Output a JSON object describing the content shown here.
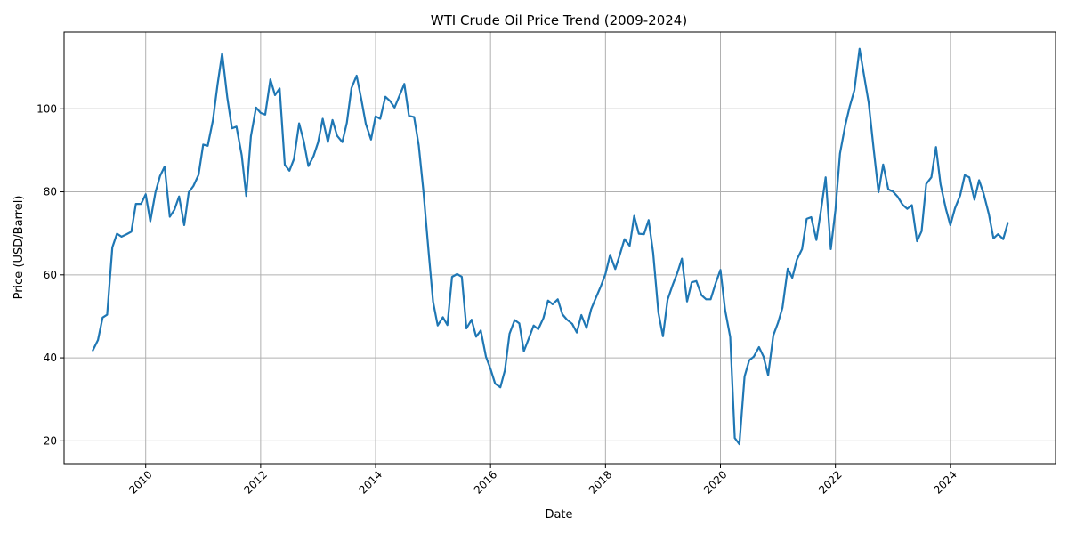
{
  "chart_data": {
    "type": "line",
    "title": "WTI Crude Oil Price Trend (2009-2024)",
    "xlabel": "Date",
    "ylabel": "Price (USD/Barrel)",
    "grid": true,
    "xlim": [
      2008.58,
      2025.83
    ],
    "ylim": [
      14.5,
      118.5
    ],
    "x_ticks": [
      2010,
      2012,
      2014,
      2016,
      2018,
      2020,
      2022,
      2024
    ],
    "x_tick_labels": [
      "2010",
      "2012",
      "2014",
      "2016",
      "2018",
      "2020",
      "2022",
      "2024"
    ],
    "y_ticks": [
      20,
      40,
      60,
      80,
      100
    ],
    "y_tick_labels": [
      "20",
      "40",
      "60",
      "80",
      "100"
    ],
    "series": [
      {
        "color": "#1f77b4",
        "x": [
          2009.08,
          2009.17,
          2009.25,
          2009.33,
          2009.42,
          2009.5,
          2009.58,
          2009.67,
          2009.75,
          2009.83,
          2009.92,
          2010.0,
          2010.08,
          2010.17,
          2010.25,
          2010.33,
          2010.42,
          2010.5,
          2010.58,
          2010.67,
          2010.75,
          2010.83,
          2010.92,
          2011.0,
          2011.08,
          2011.17,
          2011.25,
          2011.33,
          2011.42,
          2011.5,
          2011.58,
          2011.67,
          2011.75,
          2011.83,
          2011.92,
          2012.0,
          2012.08,
          2012.17,
          2012.25,
          2012.33,
          2012.42,
          2012.5,
          2012.58,
          2012.67,
          2012.75,
          2012.83,
          2012.92,
          2013.0,
          2013.08,
          2013.17,
          2013.25,
          2013.33,
          2013.42,
          2013.5,
          2013.58,
          2013.67,
          2013.75,
          2013.83,
          2013.92,
          2014.0,
          2014.08,
          2014.17,
          2014.25,
          2014.33,
          2014.42,
          2014.5,
          2014.58,
          2014.67,
          2014.75,
          2014.83,
          2014.92,
          2015.0,
          2015.08,
          2015.17,
          2015.25,
          2015.33,
          2015.42,
          2015.5,
          2015.58,
          2015.67,
          2015.75,
          2015.83,
          2015.92,
          2016.0,
          2016.08,
          2016.17,
          2016.25,
          2016.33,
          2016.42,
          2016.5,
          2016.58,
          2016.67,
          2016.75,
          2016.83,
          2016.92,
          2017.0,
          2017.08,
          2017.17,
          2017.25,
          2017.33,
          2017.42,
          2017.5,
          2017.58,
          2017.67,
          2017.75,
          2017.83,
          2017.92,
          2018.0,
          2018.08,
          2018.17,
          2018.25,
          2018.33,
          2018.42,
          2018.5,
          2018.58,
          2018.67,
          2018.75,
          2018.83,
          2018.92,
          2019.0,
          2019.08,
          2019.17,
          2019.25,
          2019.33,
          2019.42,
          2019.5,
          2019.58,
          2019.67,
          2019.75,
          2019.83,
          2019.92,
          2020.0,
          2020.08,
          2020.17,
          2020.25,
          2020.33,
          2020.42,
          2020.5,
          2020.58,
          2020.67,
          2020.75,
          2020.83,
          2020.92,
          2021.0,
          2021.08,
          2021.17,
          2021.25,
          2021.33,
          2021.42,
          2021.5,
          2021.58,
          2021.67,
          2021.75,
          2021.83,
          2021.92,
          2022.0,
          2022.08,
          2022.17,
          2022.25,
          2022.33,
          2022.42,
          2022.5,
          2022.58,
          2022.67,
          2022.75,
          2022.83,
          2022.92,
          2023.0,
          2023.08,
          2023.17,
          2023.25,
          2023.33,
          2023.42,
          2023.5,
          2023.58,
          2023.67,
          2023.75,
          2023.83,
          2023.92,
          2024.0,
          2024.08,
          2024.17,
          2024.25,
          2024.33,
          2024.42,
          2024.5,
          2024.58,
          2024.67,
          2024.75,
          2024.83,
          2024.92,
          2025.0
        ],
        "y": [
          41.8,
          44.3,
          49.7,
          50.4,
          66.6,
          69.9,
          69.2,
          69.8,
          70.4,
          77.1,
          77.1,
          79.4,
          72.9,
          79.9,
          83.8,
          86.1,
          74.0,
          75.7,
          78.9,
          72.0,
          79.9,
          81.4,
          84.1,
          91.4,
          91.1,
          97.3,
          105.8,
          113.4,
          102.7,
          95.3,
          95.7,
          88.8,
          79.0,
          93.4,
          100.3,
          99.0,
          98.6,
          107.1,
          103.3,
          104.9,
          86.5,
          85.1,
          87.9,
          96.5,
          92.2,
          86.2,
          88.6,
          91.9,
          97.6,
          92.0,
          97.3,
          93.5,
          92.0,
          96.6,
          105.0,
          108.0,
          102.4,
          96.4,
          92.6,
          98.2,
          97.6,
          102.9,
          101.9,
          100.3,
          103.3,
          106.0,
          98.3,
          98.0,
          91.2,
          80.5,
          66.0,
          53.5,
          47.8,
          49.8,
          47.9,
          59.5,
          60.2,
          59.5,
          47.1,
          49.2,
          45.1,
          46.6,
          40.3,
          37.3,
          33.8,
          32.9,
          37.0,
          45.8,
          49.1,
          48.3,
          41.6,
          44.8,
          47.8,
          46.9,
          49.6,
          53.8,
          52.9,
          54.1,
          50.5,
          49.2,
          48.2,
          46.1,
          50.3,
          47.2,
          51.7,
          54.4,
          57.3,
          60.2,
          64.8,
          61.4,
          64.9,
          68.6,
          67.0,
          74.2,
          69.9,
          69.8,
          73.2,
          65.3,
          50.9,
          45.2,
          54.0,
          57.6,
          60.5,
          63.9,
          53.6,
          58.2,
          58.5,
          55.1,
          54.1,
          54.1,
          58.1,
          61.2,
          51.6,
          45.0,
          20.7,
          19.2,
          35.5,
          39.4,
          40.3,
          42.6,
          40.3,
          35.8,
          45.4,
          48.4,
          52.1,
          61.5,
          59.3,
          63.7,
          66.2,
          73.5,
          73.9,
          68.4,
          75.6,
          83.5,
          66.2,
          75.6,
          89.2,
          95.9,
          100.6,
          104.5,
          114.5,
          108.0,
          101.4,
          89.8,
          79.9,
          86.6,
          80.6,
          80.1,
          78.9,
          76.9,
          75.9,
          76.8,
          68.1,
          70.5,
          81.9,
          83.5,
          90.8,
          81.8,
          76.0,
          72.0,
          76.0,
          79.1,
          84.0,
          83.5,
          78.1,
          82.8,
          79.5,
          74.6,
          68.8,
          69.8,
          68.6,
          72.5
        ]
      }
    ]
  }
}
